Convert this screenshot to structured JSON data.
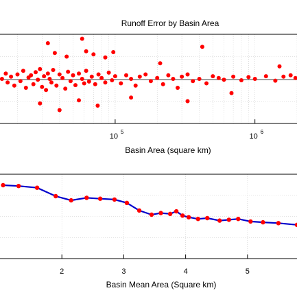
{
  "chart_data": [
    {
      "type": "scatter",
      "title": "Runoff Error by Basin Area",
      "xlabel": "Basin Area (square km)",
      "ylabel": "",
      "x_scale": "log",
      "xlim": [
        15000,
        2000000
      ],
      "ylim": [
        -1,
        1
      ],
      "grid": true,
      "ticks": [
        {
          "base": "10",
          "exp": "5",
          "value": 100000
        },
        {
          "base": "10",
          "exp": "6",
          "value": 1000000
        }
      ],
      "colors": {
        "points": "#ff0000",
        "reference": "#000000"
      },
      "reference_line_y": 0,
      "x": [
        15500,
        16500,
        17000,
        18000,
        19000,
        20000,
        21000,
        22000,
        23000,
        24000,
        25000,
        26000,
        27000,
        28000,
        29000,
        30000,
        31000,
        32000,
        33000,
        34000,
        35000,
        36000,
        38000,
        40000,
        42000,
        44000,
        46000,
        48000,
        50000,
        52000,
        55000,
        58000,
        60000,
        62000,
        65000,
        68000,
        72000,
        76000,
        80000,
        85000,
        90000,
        95000,
        100000,
        110000,
        120000,
        130000,
        140000,
        150000,
        165000,
        180000,
        200000,
        220000,
        240000,
        260000,
        280000,
        300000,
        330000,
        360000,
        400000,
        450000,
        500000,
        550000,
        600000,
        700000,
        800000,
        900000,
        1000000,
        1200000,
        1400000,
        1600000,
        1800000,
        1950000,
        33000,
        37000,
        45000,
        58000,
        62000,
        70000,
        85000,
        97000,
        210000,
        420000,
        1500000,
        29000,
        40000,
        55000,
        75000,
        130000,
        330000,
        680000
      ],
      "y": [
        0.0,
        0.12,
        -0.08,
        0.05,
        -0.15,
        0.1,
        -0.05,
        0.18,
        -0.2,
        0.03,
        0.08,
        -0.12,
        0.15,
        -0.02,
        0.22,
        -0.18,
        0.06,
        -0.25,
        0.12,
        0.0,
        -0.08,
        0.2,
        -0.15,
        0.1,
        0.02,
        -0.22,
        0.16,
        -0.05,
        0.08,
        -0.14,
        0.12,
        0.0,
        -0.1,
        0.18,
        -0.06,
        0.05,
        -0.12,
        0.1,
        0.02,
        -0.08,
        0.14,
        -0.03,
        0.06,
        -0.1,
        0.08,
        0.0,
        -0.15,
        0.05,
        0.1,
        -0.05,
        0.02,
        -0.12,
        0.08,
        0.0,
        -0.2,
        0.05,
        0.1,
        -0.05,
        0.0,
        -0.1,
        0.06,
        0.02,
        -0.02,
        0.05,
        -0.03,
        0.04,
        0.0,
        0.06,
        -0.04,
        0.05,
        0.08,
        0.02,
        0.8,
        0.58,
        0.5,
        0.9,
        0.62,
        0.55,
        0.48,
        0.6,
        0.35,
        0.72,
        0.28,
        -0.55,
        -0.7,
        -0.48,
        -0.6,
        -0.42,
        -0.5,
        -0.32
      ]
    },
    {
      "type": "line",
      "title": "",
      "xlabel": "Basin Mean Area (Square km)",
      "ylabel": "",
      "xlim": [
        1.0,
        5.8
      ],
      "ylim": [
        0.0,
        1.0
      ],
      "grid": true,
      "xticks": [
        "2",
        "3",
        "4",
        "5"
      ],
      "xtick_values": [
        2,
        3,
        4,
        5
      ],
      "colors": {
        "line": "#0000cc",
        "markers": "#ff0000"
      },
      "x": [
        1.05,
        1.3,
        1.6,
        1.9,
        2.15,
        2.4,
        2.62,
        2.85,
        3.05,
        3.25,
        3.45,
        3.6,
        3.75,
        3.85,
        3.95,
        4.05,
        4.2,
        4.35,
        4.55,
        4.7,
        4.85,
        5.05,
        5.25,
        5.5,
        5.8
      ],
      "y": [
        0.87,
        0.86,
        0.84,
        0.74,
        0.69,
        0.72,
        0.71,
        0.7,
        0.66,
        0.57,
        0.52,
        0.54,
        0.53,
        0.56,
        0.51,
        0.49,
        0.47,
        0.48,
        0.45,
        0.46,
        0.47,
        0.44,
        0.43,
        0.42,
        0.4
      ]
    }
  ]
}
